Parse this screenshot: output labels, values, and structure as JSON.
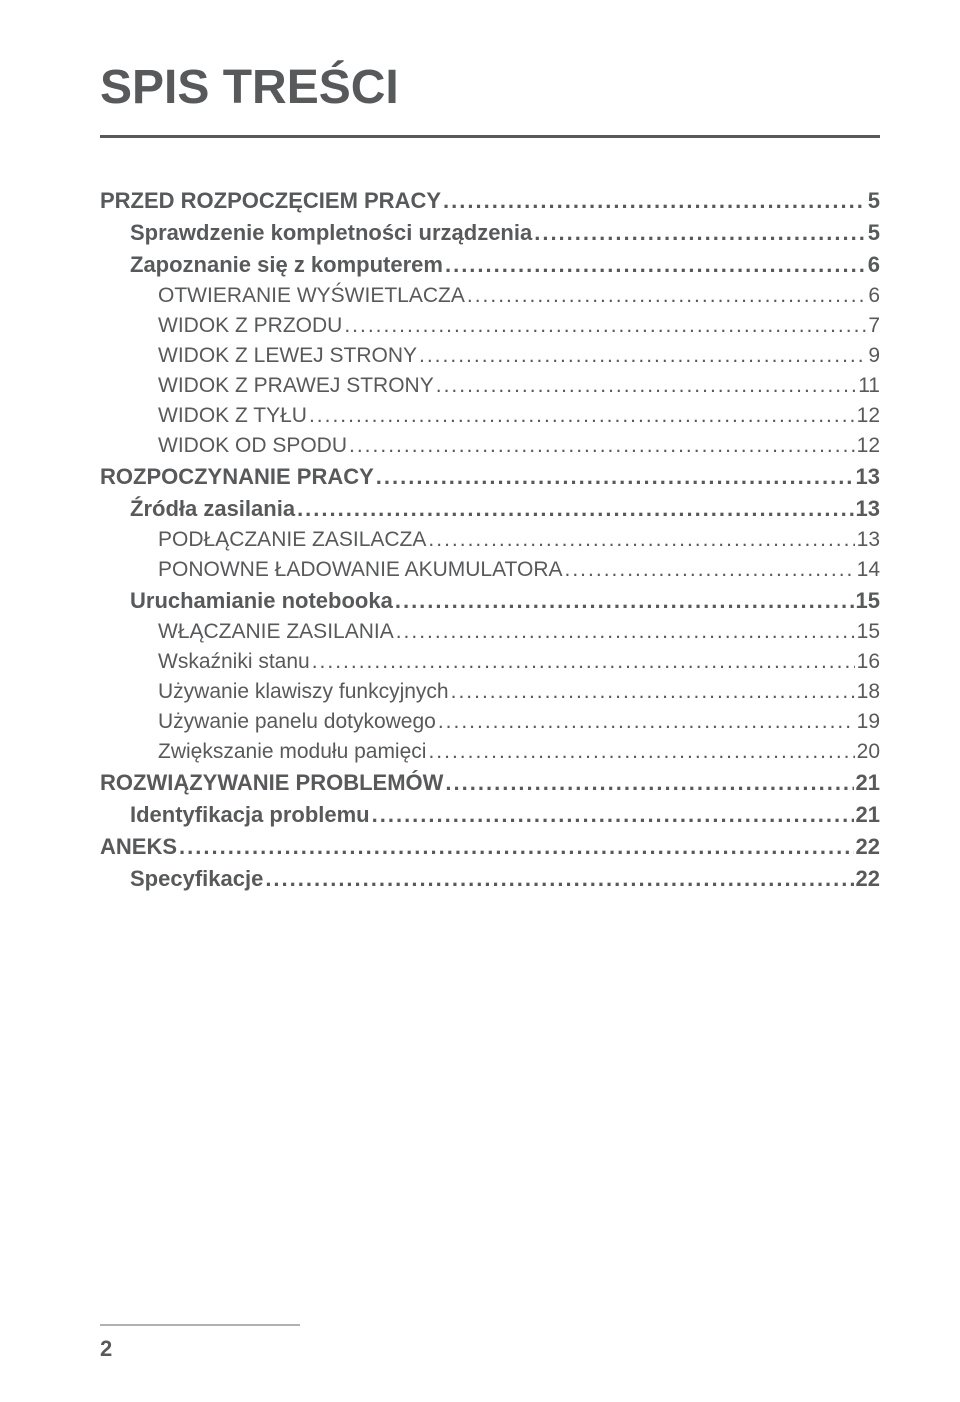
{
  "title": "SPIS TREŚCI",
  "page_number": "2",
  "colors": {
    "text": "#58595b",
    "rule": "#58595b",
    "footer_line": "#b0b1b3",
    "background": "#ffffff"
  },
  "typography": {
    "title_fontsize": 48,
    "entry_fontsize": 22,
    "font_family": "Arial"
  },
  "toc": [
    {
      "level": 0,
      "label": "PRZED ROZPOCZĘCIEM PRACY",
      "page": "5"
    },
    {
      "level": 1,
      "label": "Sprawdzenie kompletności urządzenia",
      "page": "5"
    },
    {
      "level": 1,
      "label": "Zapoznanie się z komputerem",
      "page": "6"
    },
    {
      "level": 2,
      "label": "OTWIERANIE WYŚWIETLACZA",
      "page": "6"
    },
    {
      "level": 2,
      "label": "WIDOK Z PRZODU",
      "page": "7"
    },
    {
      "level": 2,
      "label": "WIDOK Z LEWEJ STRONY",
      "page": "9"
    },
    {
      "level": 2,
      "label": "WIDOK Z PRAWEJ STRONY",
      "page": "11"
    },
    {
      "level": 2,
      "label": "WIDOK Z TYŁU",
      "page": "12"
    },
    {
      "level": 2,
      "label": "WIDOK OD SPODU",
      "page": "12"
    },
    {
      "level": 0,
      "label": "ROZPOCZYNANIE PRACY",
      "page": "13"
    },
    {
      "level": 1,
      "label": "Źródła zasilania",
      "page": "13"
    },
    {
      "level": 2,
      "label": "PODŁĄCZANIE ZASILACZA",
      "page": "13"
    },
    {
      "level": 2,
      "label": "PONOWNE ŁADOWANIE AKUMULATORA",
      "page": "14"
    },
    {
      "level": 1,
      "label": "Uruchamianie notebooka",
      "page": "15"
    },
    {
      "level": 2,
      "label": "WŁĄCZANIE ZASILANIA",
      "page": "15"
    },
    {
      "level": 2,
      "label": "Wskaźniki stanu",
      "page": "16"
    },
    {
      "level": 2,
      "label": "Używanie klawiszy funkcyjnych",
      "page": "18"
    },
    {
      "level": 2,
      "label": "Używanie panelu dotykowego",
      "page": "19"
    },
    {
      "level": 2,
      "label": "Zwiększanie modułu pamięci",
      "page": "20"
    },
    {
      "level": 0,
      "label": "ROZWIĄZYWANIE PROBLEMÓW",
      "page": "21"
    },
    {
      "level": 1,
      "label": "Identyfikacja problemu",
      "page": "21"
    },
    {
      "level": 0,
      "label": "ANEKS",
      "page": "22"
    },
    {
      "level": 1,
      "label": "Specyfikacje",
      "page": "22"
    }
  ]
}
